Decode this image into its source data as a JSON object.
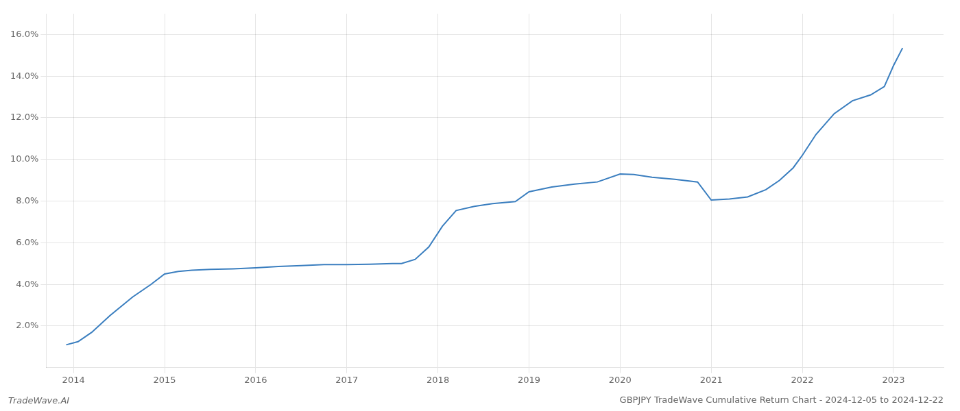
{
  "chart_data": {
    "type": "line",
    "title": "GBPJPY TradeWave Cumulative Return Chart - 2024-12-05 to 2024-12-22",
    "annotations": [
      "TradeWave.AI"
    ],
    "color": "#3a7ebf",
    "x": [
      2013.92,
      2014.05,
      2014.2,
      2014.4,
      2014.65,
      2014.85,
      2015.0,
      2015.15,
      2015.3,
      2015.5,
      2015.75,
      2016.0,
      2016.25,
      2016.5,
      2016.75,
      2017.0,
      2017.25,
      2017.5,
      2017.6,
      2017.75,
      2017.9,
      2018.05,
      2018.2,
      2018.4,
      2018.6,
      2018.85,
      2019.0,
      2019.25,
      2019.5,
      2019.75,
      2020.0,
      2020.15,
      2020.35,
      2020.6,
      2020.85,
      2021.0,
      2021.2,
      2021.4,
      2021.6,
      2021.75,
      2021.9,
      2022.0,
      2022.15,
      2022.35,
      2022.55,
      2022.75,
      2022.9,
      2023.0,
      2023.1
    ],
    "values": [
      1.1,
      1.25,
      1.7,
      2.5,
      3.4,
      4.0,
      4.5,
      4.62,
      4.68,
      4.72,
      4.75,
      4.8,
      4.86,
      4.9,
      4.95,
      4.95,
      4.97,
      5.0,
      5.0,
      5.2,
      5.8,
      6.8,
      7.55,
      7.75,
      7.88,
      7.98,
      8.45,
      8.68,
      8.82,
      8.92,
      9.3,
      9.28,
      9.15,
      9.05,
      8.92,
      8.05,
      8.1,
      8.2,
      8.55,
      9.0,
      9.6,
      10.2,
      11.2,
      12.2,
      12.82,
      13.1,
      13.5,
      14.5,
      15.35
    ],
    "xlim": [
      2013.7,
      2023.55
    ],
    "ylim": [
      0.0,
      17.0
    ],
    "xticks": [
      2014,
      2015,
      2016,
      2017,
      2018,
      2019,
      2020,
      2021,
      2022,
      2023
    ],
    "yticks": [
      {
        "value": 2.0,
        "label": "2.0%"
      },
      {
        "value": 4.0,
        "label": "4.0%"
      },
      {
        "value": 6.0,
        "label": "6.0%"
      },
      {
        "value": 8.0,
        "label": "8.0%"
      },
      {
        "value": 10.0,
        "label": "10.0%"
      },
      {
        "value": 12.0,
        "label": "12.0%"
      },
      {
        "value": 14.0,
        "label": "14.0%"
      },
      {
        "value": 16.0,
        "label": "16.0%"
      }
    ],
    "grid": true
  }
}
